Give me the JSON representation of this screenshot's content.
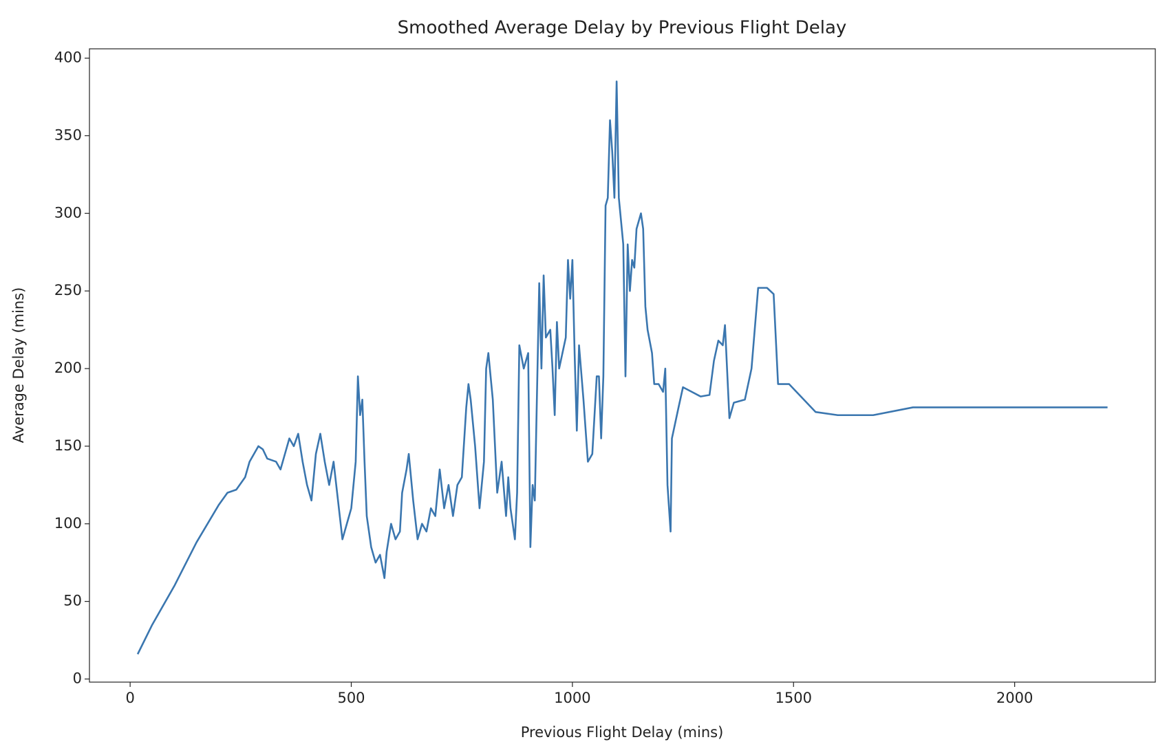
{
  "chart_data": {
    "type": "line",
    "title": "Smoothed Average Delay by Previous Flight Delay",
    "xlabel": "Previous Flight Delay (mins)",
    "ylabel": "Average Delay (mins)",
    "color": "#3a76af",
    "x": [
      17,
      50,
      100,
      150,
      200,
      220,
      240,
      260,
      270,
      290,
      300,
      310,
      330,
      340,
      350,
      360,
      370,
      380,
      390,
      400,
      410,
      420,
      430,
      440,
      450,
      460,
      470,
      480,
      490,
      500,
      510,
      515,
      520,
      525,
      530,
      535,
      545,
      555,
      565,
      575,
      580,
      590,
      600,
      610,
      615,
      625,
      630,
      640,
      650,
      660,
      670,
      680,
      690,
      700,
      710,
      720,
      730,
      740,
      750,
      760,
      765,
      770,
      780,
      790,
      800,
      805,
      810,
      820,
      830,
      840,
      850,
      855,
      860,
      870,
      875,
      880,
      890,
      900,
      905,
      910,
      915,
      925,
      930,
      935,
      940,
      950,
      955,
      960,
      965,
      970,
      985,
      990,
      995,
      1000,
      1005,
      1010,
      1015,
      1025,
      1035,
      1045,
      1055,
      1060,
      1065,
      1070,
      1075,
      1080,
      1085,
      1090,
      1095,
      1100,
      1105,
      1115,
      1120,
      1125,
      1130,
      1135,
      1140,
      1145,
      1155,
      1160,
      1165,
      1170,
      1180,
      1185,
      1195,
      1205,
      1210,
      1215,
      1222,
      1225,
      1240,
      1250,
      1270,
      1290,
      1310,
      1320,
      1330,
      1340,
      1345,
      1355,
      1365,
      1390,
      1405,
      1420,
      1440,
      1455,
      1465,
      1490,
      1550,
      1600,
      1680,
      1770,
      2210
    ],
    "values": [
      16,
      35,
      60,
      88,
      112,
      120,
      122,
      130,
      140,
      150,
      148,
      142,
      140,
      135,
      145,
      155,
      150,
      158,
      140,
      125,
      115,
      145,
      158,
      140,
      125,
      140,
      115,
      90,
      100,
      110,
      140,
      195,
      170,
      180,
      140,
      105,
      85,
      75,
      80,
      65,
      82,
      100,
      90,
      95,
      120,
      135,
      145,
      115,
      90,
      100,
      95,
      110,
      105,
      135,
      110,
      125,
      105,
      125,
      130,
      175,
      190,
      180,
      150,
      110,
      140,
      200,
      210,
      180,
      120,
      140,
      105,
      130,
      110,
      90,
      120,
      215,
      200,
      210,
      85,
      125,
      115,
      255,
      200,
      260,
      220,
      225,
      200,
      170,
      230,
      200,
      220,
      270,
      245,
      270,
      210,
      160,
      215,
      180,
      140,
      145,
      195,
      195,
      155,
      195,
      305,
      310,
      360,
      340,
      310,
      385,
      310,
      280,
      195,
      280,
      250,
      270,
      265,
      290,
      300,
      290,
      240,
      225,
      210,
      190,
      190,
      185,
      200,
      125,
      95,
      155,
      175,
      188,
      185,
      182,
      183,
      205,
      218,
      215,
      228,
      168,
      178,
      180,
      200,
      252,
      252,
      248,
      190,
      190,
      172,
      170,
      170,
      175,
      175
    ],
    "xlim": [
      -92,
      2318
    ],
    "ylim": [
      -2,
      406
    ],
    "xticks": [
      0,
      500,
      1000,
      1500,
      2000
    ],
    "yticks": [
      0,
      50,
      100,
      150,
      200,
      250,
      300,
      350,
      400
    ],
    "grid": false
  }
}
